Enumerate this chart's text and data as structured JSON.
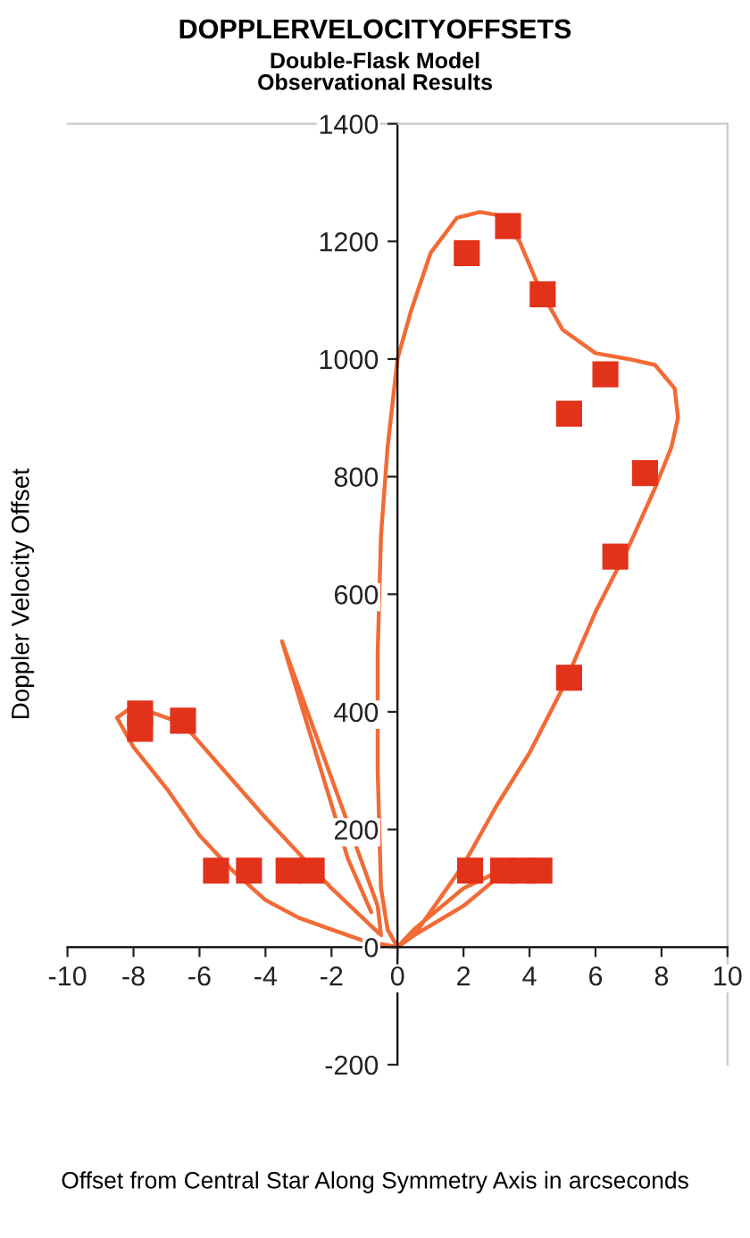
{
  "chart_data": {
    "type": "scatter",
    "title": "DOPPLERVELOCITYOFFSETS",
    "subtitle": "Double-Flask Model\nObservational Results",
    "xlabel": "Offset from Central Star Along Symmetry Axis in arcseconds",
    "ylabel": "Doppler Velocity Offset",
    "xlim": [
      -10,
      10
    ],
    "ylim": [
      -200,
      1400
    ],
    "xticks": [
      -10,
      -8,
      -6,
      -4,
      -2,
      0,
      2,
      4,
      6,
      8,
      10
    ],
    "yticks": [
      -200,
      0,
      200,
      400,
      600,
      800,
      1000,
      1200,
      1400
    ],
    "grid": false,
    "legend": false,
    "series": [
      {
        "type": "line",
        "color": "#f26a35",
        "line_style": "solid",
        "marker": "none",
        "x": [
          0,
          0.5,
          1,
          2,
          3,
          4,
          5,
          6,
          7,
          7.8,
          8.3,
          8.5,
          8.4,
          7.8,
          7,
          6,
          5,
          4.3,
          3.7,
          3,
          2.5,
          1.8,
          1,
          0.4,
          0,
          -0.3,
          -0.5,
          -0.6,
          -0.6,
          -0.5,
          -0.3,
          0,
          0.5,
          2,
          3.5,
          2,
          0.5,
          0,
          -1,
          -2,
          -3,
          -4,
          -5,
          -6,
          -7,
          -8,
          -8.5,
          -8,
          -7.5,
          -6.5,
          -4,
          -2,
          -0.5,
          -0.6,
          -3.5,
          -1.5,
          -0.8
        ],
        "values": [
          0,
          20,
          60,
          140,
          240,
          330,
          440,
          570,
          680,
          780,
          850,
          900,
          950,
          990,
          1000,
          1010,
          1050,
          1120,
          1200,
          1245,
          1250,
          1240,
          1180,
          1080,
          1000,
          850,
          700,
          500,
          300,
          100,
          30,
          0,
          30,
          100,
          140,
          70,
          20,
          0,
          10,
          30,
          50,
          80,
          130,
          190,
          270,
          340,
          390,
          410,
          400,
          380,
          220,
          100,
          20,
          70,
          520,
          150,
          60
        ]
      },
      {
        "color": "#e2321a",
        "marker": "square",
        "x": [
          -7.8,
          -7.8,
          -6.5,
          -5.5,
          -4.5,
          -3.3,
          -2.6,
          2.2,
          3.2,
          3.8,
          4.3,
          2.1,
          3.35,
          4.4,
          5.2,
          6.3,
          7.5,
          6.6,
          5.2
        ],
        "values": [
          397,
          371,
          385,
          130,
          130,
          130,
          130,
          130,
          130,
          130,
          130,
          1180,
          1226,
          1110,
          907,
          974,
          806,
          664,
          458
        ]
      }
    ]
  }
}
